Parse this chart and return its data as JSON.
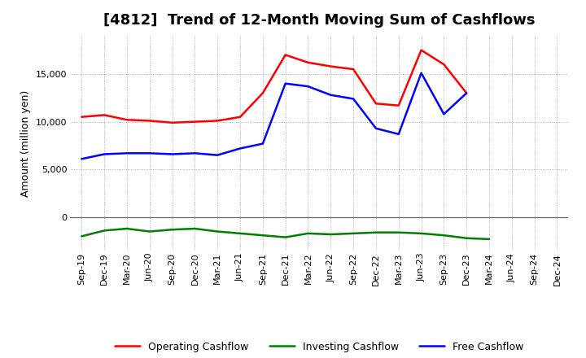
{
  "title": "[4812]  Trend of 12-Month Moving Sum of Cashflows",
  "ylabel": "Amount (million yen)",
  "background_color": "#ffffff",
  "grid_color": "#999999",
  "x_labels": [
    "Sep-19",
    "Dec-19",
    "Mar-20",
    "Jun-20",
    "Sep-20",
    "Dec-20",
    "Mar-21",
    "Jun-21",
    "Sep-21",
    "Dec-21",
    "Mar-22",
    "Jun-22",
    "Sep-22",
    "Dec-22",
    "Mar-23",
    "Jun-23",
    "Sep-23",
    "Dec-23",
    "Mar-24",
    "Jun-24",
    "Sep-24",
    "Dec-24"
  ],
  "operating_cashflow": [
    10500,
    10700,
    10200,
    10100,
    9900,
    10000,
    10100,
    10500,
    13000,
    17000,
    16200,
    15800,
    15500,
    11900,
    11700,
    17500,
    16000,
    13000,
    null,
    null,
    null,
    null
  ],
  "investing_cashflow": [
    -2000,
    -1400,
    -1200,
    -1500,
    -1300,
    -1200,
    -1500,
    -1700,
    -1900,
    -2100,
    -1700,
    -1800,
    -1700,
    -1600,
    -1600,
    -1700,
    -1900,
    -2200,
    -2300,
    null,
    null,
    null
  ],
  "free_cashflow": [
    6100,
    6600,
    6700,
    6700,
    6600,
    6700,
    6500,
    7200,
    7700,
    14000,
    13700,
    12800,
    12400,
    9300,
    8700,
    15100,
    10800,
    13000,
    null,
    null,
    null,
    null
  ],
  "ylim": [
    -3500,
    19000
  ],
  "yticks": [
    0,
    5000,
    10000,
    15000
  ],
  "legend_items": [
    {
      "label": "Operating Cashflow",
      "color": "#ff0000"
    },
    {
      "label": "Investing Cashflow",
      "color": "#008000"
    },
    {
      "label": "Free Cashflow",
      "color": "#0000ff"
    }
  ],
  "title_fontsize": 13,
  "axis_fontsize": 8,
  "ylabel_fontsize": 9
}
